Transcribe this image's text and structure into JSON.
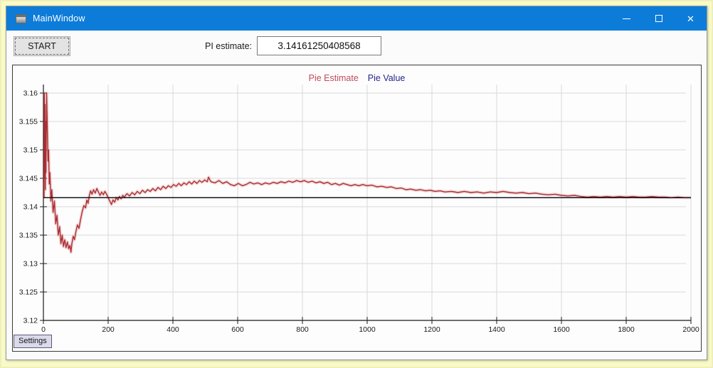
{
  "window": {
    "title": "MainWindow",
    "close_glyph": "✕"
  },
  "toolbar": {
    "start_label": "START",
    "pi_label": "PI estimate:",
    "pi_value": "3.14161250408568"
  },
  "tabs": [
    {
      "label": "Settings"
    }
  ],
  "colors": {
    "titlebar": "#0d7cd9",
    "page_bg": "#fafac6",
    "legend_estimate": "#bf4a5a",
    "legend_value": "#26268c",
    "estimate_line": "#ab2f33",
    "estimate_halo": "rgba(210,80,85,0.22)",
    "value_line": "#15151d",
    "grid": "#d9d9d9",
    "axis": "#1a1a1a",
    "tick_text": "#1a1a1a"
  },
  "chart_data": {
    "type": "line",
    "title": "",
    "xlabel": "",
    "ylabel": "",
    "xlim": [
      0,
      2000
    ],
    "ylim": [
      3.12,
      3.16
    ],
    "grid": true,
    "legend_position": "top-center",
    "x_ticks": [
      {
        "value": 0,
        "label": "0"
      },
      {
        "value": 200,
        "label": "200"
      },
      {
        "value": 400,
        "label": "400"
      },
      {
        "value": 600,
        "label": "600"
      },
      {
        "value": 800,
        "label": "800"
      },
      {
        "value": 1000,
        "label": "1000"
      },
      {
        "value": 1200,
        "label": "1200"
      },
      {
        "value": 1400,
        "label": "1400"
      },
      {
        "value": 1600,
        "label": "1600"
      },
      {
        "value": 1800,
        "label": "1800"
      },
      {
        "value": 2000,
        "label": "2000"
      }
    ],
    "y_ticks": [
      {
        "value": 3.12,
        "label": "3.12"
      },
      {
        "value": 3.125,
        "label": "3.125"
      },
      {
        "value": 3.13,
        "label": "3.13"
      },
      {
        "value": 3.135,
        "label": "3.135"
      },
      {
        "value": 3.14,
        "label": "3.14"
      },
      {
        "value": 3.145,
        "label": "3.145"
      },
      {
        "value": 3.15,
        "label": "3.15"
      },
      {
        "value": 3.155,
        "label": "3.155"
      },
      {
        "value": 3.16,
        "label": "3.16"
      }
    ],
    "series": [
      {
        "name": "Pie Estimate",
        "type": "line",
        "color": "#ab2f33",
        "legend_color": "#bf4a5a",
        "final_value": 3.14161250408568,
        "points": [
          [
            2,
            3.1416
          ],
          [
            3,
            3.16
          ],
          [
            4,
            3.145
          ],
          [
            5,
            3.158
          ],
          [
            6,
            3.143
          ],
          [
            7,
            3.155
          ],
          [
            8,
            3.146
          ],
          [
            10,
            3.16
          ],
          [
            12,
            3.154
          ],
          [
            14,
            3.148
          ],
          [
            16,
            3.15
          ],
          [
            18,
            3.144
          ],
          [
            20,
            3.146
          ],
          [
            23,
            3.141
          ],
          [
            26,
            3.143
          ],
          [
            30,
            3.139
          ],
          [
            34,
            3.141
          ],
          [
            38,
            3.137
          ],
          [
            42,
            3.1385
          ],
          [
            46,
            3.135
          ],
          [
            50,
            3.1365
          ],
          [
            54,
            3.1335
          ],
          [
            58,
            3.135
          ],
          [
            62,
            3.133
          ],
          [
            66,
            3.1342
          ],
          [
            70,
            3.1328
          ],
          [
            74,
            3.1338
          ],
          [
            78,
            3.1326
          ],
          [
            82,
            3.1332
          ],
          [
            85,
            3.132
          ],
          [
            88,
            3.1335
          ],
          [
            92,
            3.1348
          ],
          [
            96,
            3.1342
          ],
          [
            100,
            3.1355
          ],
          [
            105,
            3.1368
          ],
          [
            110,
            3.1362
          ],
          [
            115,
            3.1378
          ],
          [
            120,
            3.1392
          ],
          [
            125,
            3.1402
          ],
          [
            130,
            3.1398
          ],
          [
            134,
            3.1412
          ],
          [
            138,
            3.1406
          ],
          [
            142,
            3.142
          ],
          [
            146,
            3.1428
          ],
          [
            150,
            3.1422
          ],
          [
            155,
            3.143
          ],
          [
            160,
            3.1424
          ],
          [
            165,
            3.1432
          ],
          [
            170,
            3.1426
          ],
          [
            175,
            3.142
          ],
          [
            180,
            3.1426
          ],
          [
            185,
            3.1421
          ],
          [
            190,
            3.1427
          ],
          [
            195,
            3.1422
          ],
          [
            200,
            3.1416
          ],
          [
            205,
            3.141
          ],
          [
            210,
            3.1404
          ],
          [
            215,
            3.1412
          ],
          [
            220,
            3.1408
          ],
          [
            225,
            3.1416
          ],
          [
            230,
            3.1412
          ],
          [
            235,
            3.1418
          ],
          [
            240,
            3.1414
          ],
          [
            245,
            3.142
          ],
          [
            250,
            3.1417
          ],
          [
            258,
            3.1423
          ],
          [
            266,
            3.1419
          ],
          [
            274,
            3.1425
          ],
          [
            282,
            3.1421
          ],
          [
            290,
            3.1427
          ],
          [
            298,
            3.1423
          ],
          [
            306,
            3.1429
          ],
          [
            314,
            3.1425
          ],
          [
            322,
            3.143
          ],
          [
            330,
            3.1427
          ],
          [
            338,
            3.1432
          ],
          [
            346,
            3.1428
          ],
          [
            354,
            3.1434
          ],
          [
            362,
            3.143
          ],
          [
            370,
            3.1436
          ],
          [
            378,
            3.1432
          ],
          [
            386,
            3.1437
          ],
          [
            394,
            3.1434
          ],
          [
            402,
            3.1439
          ],
          [
            410,
            3.1436
          ],
          [
            418,
            3.1441
          ],
          [
            426,
            3.1437
          ],
          [
            434,
            3.1442
          ],
          [
            442,
            3.1439
          ],
          [
            450,
            3.1444
          ],
          [
            458,
            3.144
          ],
          [
            466,
            3.1445
          ],
          [
            474,
            3.1441
          ],
          [
            482,
            3.1446
          ],
          [
            490,
            3.1443
          ],
          [
            498,
            3.1447
          ],
          [
            506,
            3.1444
          ],
          [
            510,
            3.1452
          ],
          [
            514,
            3.1447
          ],
          [
            518,
            3.1444
          ],
          [
            530,
            3.1442
          ],
          [
            542,
            3.1446
          ],
          [
            554,
            3.1441
          ],
          [
            566,
            3.1444
          ],
          [
            578,
            3.1439
          ],
          [
            590,
            3.1437
          ],
          [
            602,
            3.1441
          ],
          [
            614,
            3.1437
          ],
          [
            626,
            3.1439
          ],
          [
            638,
            3.1443
          ],
          [
            650,
            3.144
          ],
          [
            662,
            3.1442
          ],
          [
            674,
            3.1439
          ],
          [
            686,
            3.1442
          ],
          [
            698,
            3.144
          ],
          [
            710,
            3.1443
          ],
          [
            722,
            3.1441
          ],
          [
            734,
            3.1444
          ],
          [
            746,
            3.1442
          ],
          [
            758,
            3.1445
          ],
          [
            770,
            3.1443
          ],
          [
            782,
            3.1446
          ],
          [
            794,
            3.1444
          ],
          [
            806,
            3.1446
          ],
          [
            818,
            3.1443
          ],
          [
            830,
            3.1445
          ],
          [
            842,
            3.1442
          ],
          [
            854,
            3.1444
          ],
          [
            866,
            3.1441
          ],
          [
            878,
            3.1443
          ],
          [
            890,
            3.1439
          ],
          [
            902,
            3.1441
          ],
          [
            914,
            3.1438
          ],
          [
            926,
            3.1441
          ],
          [
            938,
            3.1439
          ],
          [
            950,
            3.1437
          ],
          [
            962,
            3.1439
          ],
          [
            974,
            3.1437
          ],
          [
            986,
            3.1439
          ],
          [
            1000,
            3.1437
          ],
          [
            1015,
            3.1438
          ],
          [
            1030,
            3.1435
          ],
          [
            1045,
            3.1436
          ],
          [
            1060,
            3.1434
          ],
          [
            1075,
            3.1435
          ],
          [
            1090,
            3.1432
          ],
          [
            1105,
            3.1433
          ],
          [
            1120,
            3.143
          ],
          [
            1135,
            3.1431
          ],
          [
            1150,
            3.1429
          ],
          [
            1165,
            3.143
          ],
          [
            1180,
            3.1428
          ],
          [
            1195,
            3.1429
          ],
          [
            1210,
            3.1427
          ],
          [
            1225,
            3.1428
          ],
          [
            1240,
            3.1426
          ],
          [
            1260,
            3.1427
          ],
          [
            1280,
            3.1425
          ],
          [
            1300,
            3.1427
          ],
          [
            1320,
            3.1425
          ],
          [
            1340,
            3.1426
          ],
          [
            1360,
            3.1424
          ],
          [
            1380,
            3.1426
          ],
          [
            1400,
            3.1425
          ],
          [
            1420,
            3.1427
          ],
          [
            1440,
            3.1425
          ],
          [
            1460,
            3.1424
          ],
          [
            1480,
            3.1425
          ],
          [
            1500,
            3.1423
          ],
          [
            1520,
            3.1424
          ],
          [
            1540,
            3.1422
          ],
          [
            1560,
            3.1421
          ],
          [
            1580,
            3.1422
          ],
          [
            1600,
            3.142
          ],
          [
            1620,
            3.1419
          ],
          [
            1640,
            3.142
          ],
          [
            1660,
            3.1418
          ],
          [
            1680,
            3.1417
          ],
          [
            1700,
            3.1418
          ],
          [
            1720,
            3.1417
          ],
          [
            1740,
            3.1418
          ],
          [
            1760,
            3.1417
          ],
          [
            1780,
            3.1418
          ],
          [
            1800,
            3.1417
          ],
          [
            1820,
            3.1418
          ],
          [
            1840,
            3.1417
          ],
          [
            1860,
            3.1417
          ],
          [
            1880,
            3.1418
          ],
          [
            1900,
            3.1417
          ],
          [
            1920,
            3.1417
          ],
          [
            1940,
            3.1416
          ],
          [
            1960,
            3.1417
          ],
          [
            1980,
            3.1416
          ],
          [
            2000,
            3.1416
          ]
        ]
      },
      {
        "name": "Pie Value",
        "type": "hline",
        "color": "#15151d",
        "legend_color": "#26268c",
        "value": 3.14159265
      }
    ]
  }
}
